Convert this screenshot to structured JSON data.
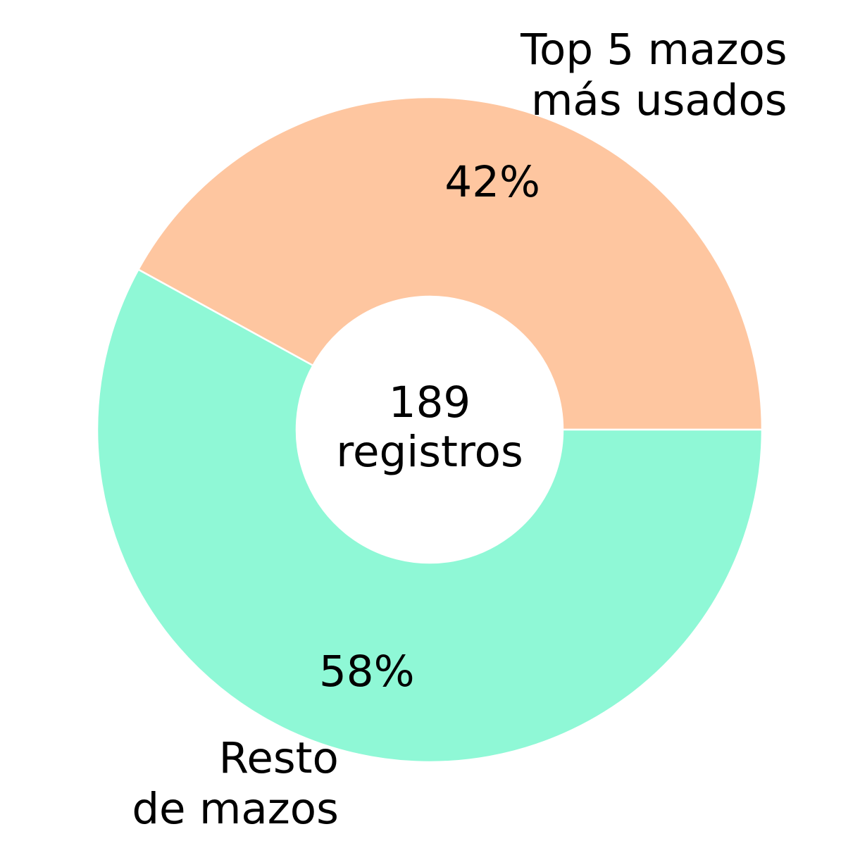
{
  "chart_data": {
    "type": "pie",
    "categories": [
      "Top 5 mazos\nmás usados",
      "Resto\nde mazos"
    ],
    "values": [
      42,
      58
    ],
    "value_labels": [
      "42%",
      "58%"
    ],
    "colors": [
      "#fec6a0",
      "#8ff8d6"
    ],
    "annotation": "189\nregistros"
  }
}
